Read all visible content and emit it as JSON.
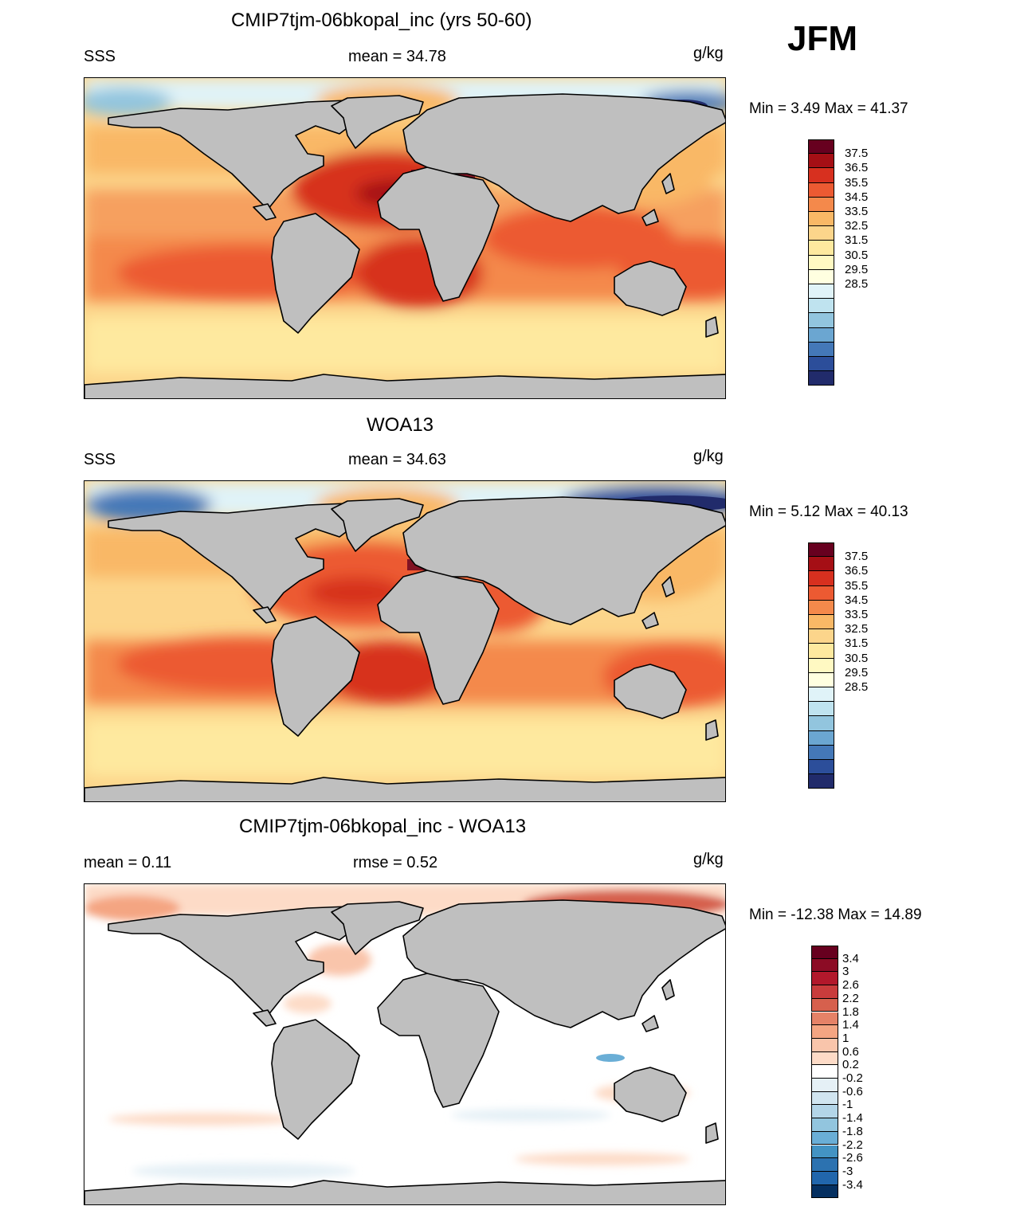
{
  "season": "JFM",
  "units": "g/kg",
  "land_color": "#bfbfbf",
  "panels": [
    {
      "title": "CMIP7tjm-06bkopal_inc (yrs 50-60)",
      "left_label": "SSS",
      "center_label": "mean =  34.78",
      "right_label": "g/kg",
      "minmax": "Min =   3.49 Max =  41.37"
    },
    {
      "title": "WOA13",
      "left_label": "SSS",
      "center_label": "mean =  34.63",
      "right_label": "g/kg",
      "minmax": "Min =   5.12 Max =  40.13"
    },
    {
      "title": "CMIP7tjm-06bkopal_inc - WOA13",
      "left_label": "mean =   0.11",
      "center_label": "rmse =   0.52",
      "right_label": "g/kg",
      "minmax": "Min = -12.38 Max =  14.89"
    }
  ],
  "sss_colorbar": {
    "labels": [
      "37.5",
      "36.5",
      "35.5",
      "34.5",
      "33.5",
      "32.5",
      "31.5",
      "30.5",
      "29.5",
      "28.5"
    ],
    "colors": [
      "#67001f",
      "#a50f15",
      "#d7301f",
      "#ec5a32",
      "#f4894b",
      "#f9b866",
      "#fcd58b",
      "#fee99f",
      "#fff9c2",
      "#ffffe0",
      "#e0f3f8",
      "#bfe3ef",
      "#92c5de",
      "#6ba6d1",
      "#4478b8",
      "#2c4e9a",
      "#212b6b"
    ]
  },
  "diff_colorbar": {
    "labels": [
      "3.4",
      "3",
      "2.6",
      "2.2",
      "1.8",
      "1.4",
      "1",
      "0.6",
      "0.2",
      "-0.2",
      "-0.6",
      "-1",
      "-1.4",
      "-1.8",
      "-2.2",
      "-2.6",
      "-3",
      "-3.4"
    ],
    "colors": [
      "#67001f",
      "#8c0c25",
      "#b2182b",
      "#c93c3c",
      "#d6604d",
      "#e58267",
      "#f4a582",
      "#f9c5ab",
      "#fddbc7",
      "#ffffff",
      "#e5f0f6",
      "#d1e5f0",
      "#b3d5e8",
      "#92c5de",
      "#6aaed6",
      "#4393c3",
      "#2c72b0",
      "#2166ac",
      "#053061"
    ]
  }
}
